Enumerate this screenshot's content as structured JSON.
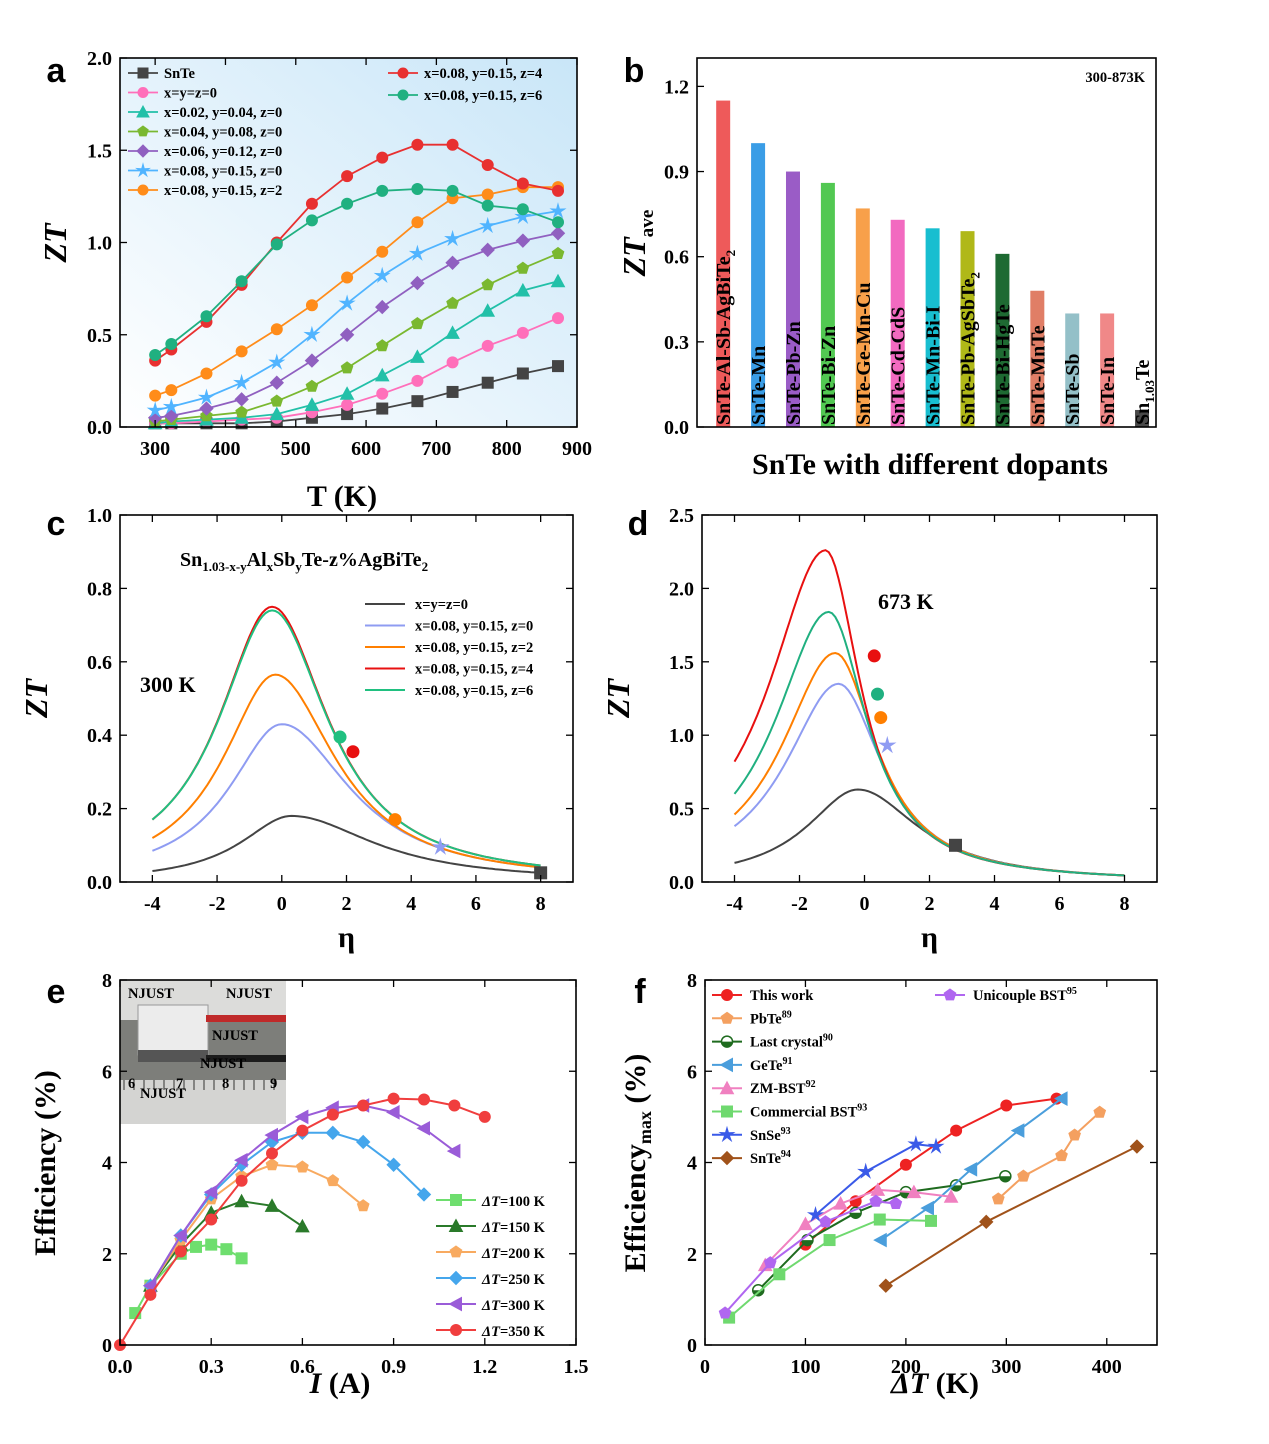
{
  "panel_labels": [
    "a",
    "b",
    "c",
    "d",
    "e",
    "f"
  ],
  "chart_data": [
    {
      "panel": "a",
      "type": "line",
      "xlabel": "T (K)",
      "ylabel": "ZT",
      "xlim": [
        250,
        900
      ],
      "ylim": [
        0,
        2.0
      ],
      "xticks": [
        "300",
        "400",
        "500",
        "600",
        "700",
        "800",
        "900"
      ],
      "yticks": [
        "0.0",
        "0.5",
        "1.0",
        "1.5",
        "2.0"
      ],
      "x": [
        300,
        323,
        373,
        423,
        473,
        523,
        573,
        623,
        673,
        723,
        773,
        823,
        873
      ],
      "legend_position": "top (two columns)",
      "series": [
        {
          "name": "SnTe",
          "color": "#444444",
          "marker": "square",
          "values": [
            0.02,
            0.02,
            0.02,
            0.02,
            0.03,
            0.05,
            0.07,
            0.1,
            0.14,
            0.19,
            0.24,
            0.29,
            0.33
          ]
        },
        {
          "name": "x=y=z=0",
          "color": "#ff6fba",
          "marker": "circle",
          "values": [
            0.02,
            0.02,
            0.03,
            0.04,
            0.05,
            0.08,
            0.12,
            0.18,
            0.25,
            0.35,
            0.44,
            0.51,
            0.59
          ]
        },
        {
          "name": "x=0.02, y=0.04, z=0",
          "color": "#22c0a8",
          "marker": "triangle",
          "values": [
            0.02,
            0.03,
            0.04,
            0.05,
            0.07,
            0.12,
            0.18,
            0.28,
            0.38,
            0.51,
            0.63,
            0.74,
            0.79
          ]
        },
        {
          "name": "x=0.04, y=0.08, z=0",
          "color": "#7ab830",
          "marker": "pentagon",
          "values": [
            0.03,
            0.04,
            0.06,
            0.08,
            0.14,
            0.22,
            0.32,
            0.44,
            0.56,
            0.67,
            0.77,
            0.86,
            0.94
          ]
        },
        {
          "name": "x=0.06, y=0.12, z=0",
          "color": "#9060c0",
          "marker": "diamond",
          "values": [
            0.05,
            0.06,
            0.1,
            0.15,
            0.24,
            0.36,
            0.5,
            0.65,
            0.78,
            0.89,
            0.96,
            1.01,
            1.05
          ]
        },
        {
          "name": "x=0.08, y=0.15, z=0",
          "color": "#50b4ff",
          "marker": "star",
          "values": [
            0.09,
            0.11,
            0.16,
            0.24,
            0.35,
            0.5,
            0.67,
            0.82,
            0.94,
            1.02,
            1.09,
            1.14,
            1.17
          ]
        },
        {
          "name": "x=0.08, y=0.15, z=2",
          "color": "#ff8c1a",
          "marker": "circle",
          "values": [
            0.17,
            0.2,
            0.29,
            0.41,
            0.53,
            0.66,
            0.81,
            0.95,
            1.11,
            1.24,
            1.26,
            1.3,
            1.3
          ]
        },
        {
          "name": "x=0.08, y=0.15, z=4",
          "color": "#e83030",
          "marker": "circle",
          "values": [
            0.36,
            0.42,
            0.57,
            0.77,
            1.0,
            1.21,
            1.36,
            1.46,
            1.53,
            1.53,
            1.42,
            1.32,
            1.28
          ]
        },
        {
          "name": "x=0.08, y=0.15, z=6",
          "color": "#20b080",
          "marker": "circle",
          "values": [
            0.39,
            0.45,
            0.6,
            0.79,
            0.99,
            1.12,
            1.21,
            1.28,
            1.29,
            1.28,
            1.2,
            1.18,
            1.11
          ]
        }
      ]
    },
    {
      "panel": "b",
      "type": "bar",
      "xlabel": "SnTe with different dopants",
      "ylabel": "ZTave",
      "annotation": "300-873K",
      "ylim": [
        0,
        1.3
      ],
      "yticks": [
        "0.0",
        "0.3",
        "0.6",
        "0.9",
        "1.2"
      ],
      "categories": [
        "SnTe-Al-Sb-AgBiTe2",
        "SnTe-Mn",
        "SnTe-Pb-Zn",
        "SnTe-Bi-Zn",
        "SnTe-Ge-Mn-Cu",
        "SnTe-Cd-CdS",
        "SnTe-Mn-Bi-I",
        "SnTe-Pb-AgSbTe2",
        "SnTe-Bi-HgTe",
        "SnTe-MnTe",
        "SnTe-Sb",
        "SnTe-In",
        "Sn1.03Te"
      ],
      "values": [
        1.15,
        1.0,
        0.9,
        0.86,
        0.77,
        0.73,
        0.7,
        0.69,
        0.61,
        0.48,
        0.4,
        0.4,
        0.06
      ],
      "colors": [
        "#ee5a5a",
        "#3a9de6",
        "#9a5cc6",
        "#52c852",
        "#f8a04a",
        "#f26ac0",
        "#18bed0",
        "#b0b818",
        "#1e6a32",
        "#e07e66",
        "#94c0c8",
        "#f08888",
        "#4a4a4a"
      ]
    },
    {
      "panel": "c",
      "type": "line",
      "xlabel": "η",
      "ylabel": "ZT",
      "annotation": "300 K",
      "formula": "Sn1.03-x-yAlxSbyTe-z%AgBiTe2",
      "xlim": [
        -5,
        9
      ],
      "ylim": [
        0,
        1.0
      ],
      "xticks": [
        "-4",
        "-2",
        "0",
        "2",
        "4",
        "6",
        "8"
      ],
      "yticks": [
        "0.0",
        "0.2",
        "0.4",
        "0.6",
        "0.8",
        "1.0"
      ],
      "legend_position": "right",
      "series": [
        {
          "name": "x=y=z=0",
          "color": "#444444",
          "peak_eta": 0.3,
          "peak_zt": 0.18,
          "start_zt": 0.03,
          "end_zt": 0.025,
          "marker": "square",
          "point": [
            8.0,
            0.025
          ]
        },
        {
          "name": "x=0.08, y=0.15, z=0",
          "color": "#8f9cf2",
          "peak_eta": 0.0,
          "peak_zt": 0.43,
          "start_zt": 0.085,
          "end_zt": 0.04,
          "marker": "star",
          "point": [
            4.9,
            0.095
          ]
        },
        {
          "name": "x=0.08, y=0.15, z=2",
          "color": "#ff7f00",
          "peak_eta": -0.2,
          "peak_zt": 0.565,
          "start_zt": 0.12,
          "end_zt": 0.04,
          "marker": "circle",
          "point": [
            3.5,
            0.17
          ]
        },
        {
          "name": "x=0.08, y=0.15, z=4",
          "color": "#e81010",
          "peak_eta": -0.3,
          "peak_zt": 0.75,
          "start_zt": 0.17,
          "end_zt": 0.045,
          "marker": "circle",
          "point": [
            2.2,
            0.355
          ]
        },
        {
          "name": "x=0.08, y=0.15, z=6",
          "color": "#20c080",
          "peak_eta": -0.3,
          "peak_zt": 0.74,
          "start_zt": 0.17,
          "end_zt": 0.045,
          "marker": "circle",
          "point": [
            1.8,
            0.395
          ]
        }
      ]
    },
    {
      "panel": "d",
      "type": "line",
      "xlabel": "η",
      "ylabel": "ZT",
      "annotation": "673 K",
      "xlim": [
        -5,
        9
      ],
      "ylim": [
        0,
        2.5
      ],
      "xticks": [
        "-4",
        "-2",
        "0",
        "2",
        "4",
        "6",
        "8"
      ],
      "yticks": [
        "0.0",
        "0.5",
        "1.0",
        "1.5",
        "2.0",
        "2.5"
      ],
      "series": [
        {
          "name": "x=y=z=0",
          "color": "#444444",
          "peak_eta": -0.2,
          "peak_zt": 0.63,
          "start_zt": 0.13,
          "end_zt": 0.045,
          "marker": "square",
          "point": [
            2.8,
            0.25
          ]
        },
        {
          "name": "x=0.08, y=0.15, z=0",
          "color": "#8f9cf2",
          "peak_eta": -0.8,
          "peak_zt": 1.35,
          "start_zt": 0.38,
          "end_zt": 0.045,
          "marker": "star",
          "point": [
            0.7,
            0.93
          ]
        },
        {
          "name": "x=0.08, y=0.15, z=2",
          "color": "#ff7f00",
          "peak_eta": -0.9,
          "peak_zt": 1.56,
          "start_zt": 0.46,
          "end_zt": 0.045,
          "marker": "circle",
          "point": [
            0.5,
            1.12
          ]
        },
        {
          "name": "x=0.08, y=0.15, z=4",
          "color": "#e81010",
          "peak_eta": -1.2,
          "peak_zt": 2.26,
          "start_zt": 0.82,
          "end_zt": 0.045,
          "marker": "circle",
          "point": [
            0.3,
            1.54
          ]
        },
        {
          "name": "x=0.08, y=0.15, z=6",
          "color": "#20b080",
          "peak_eta": -1.1,
          "peak_zt": 1.84,
          "start_zt": 0.6,
          "end_zt": 0.045,
          "marker": "circle",
          "point": [
            0.4,
            1.28
          ]
        }
      ]
    },
    {
      "panel": "e",
      "type": "line",
      "xlabel": "I (A)",
      "ylabel": "Efficiency (%)",
      "xlim": [
        0,
        1.5
      ],
      "ylim": [
        0,
        8
      ],
      "xticks": [
        "0.0",
        "0.3",
        "0.6",
        "0.9",
        "1.2",
        "1.5"
      ],
      "yticks": [
        "0",
        "2",
        "4",
        "6",
        "8"
      ],
      "legend_position": "bottom-right",
      "inset_text": [
        "NJUST",
        "NJUST",
        "NJUST",
        "NJUST",
        "NJUST",
        "6",
        "7",
        "8",
        "9"
      ],
      "series": [
        {
          "name": "ΔT=100 K",
          "color": "#6ede6e",
          "marker": "square",
          "x": [
            0.05,
            0.1,
            0.2,
            0.25,
            0.3,
            0.35,
            0.4
          ],
          "y": [
            0.7,
            1.3,
            2.0,
            2.15,
            2.2,
            2.1,
            1.9
          ]
        },
        {
          "name": "ΔT=150 K",
          "color": "#2a7a2a",
          "marker": "triangle",
          "x": [
            0.1,
            0.2,
            0.3,
            0.4,
            0.5,
            0.6
          ],
          "y": [
            1.3,
            2.2,
            2.9,
            3.15,
            3.05,
            2.6
          ]
        },
        {
          "name": "ΔT=200 K",
          "color": "#f8aa60",
          "marker": "pentagon",
          "x": [
            0.1,
            0.2,
            0.3,
            0.4,
            0.5,
            0.6,
            0.7,
            0.8
          ],
          "y": [
            1.3,
            2.3,
            3.2,
            3.7,
            3.95,
            3.9,
            3.6,
            3.05
          ]
        },
        {
          "name": "ΔT=250 K",
          "color": "#45a6ec",
          "marker": "diamond",
          "x": [
            0.1,
            0.2,
            0.3,
            0.4,
            0.5,
            0.6,
            0.7,
            0.8,
            0.9,
            1.0
          ],
          "y": [
            1.3,
            2.4,
            3.3,
            3.95,
            4.45,
            4.65,
            4.65,
            4.45,
            3.95,
            3.3
          ]
        },
        {
          "name": "ΔT=300 K",
          "color": "#9a5cd8",
          "marker": "tri-left",
          "x": [
            0.1,
            0.2,
            0.3,
            0.4,
            0.5,
            0.6,
            0.7,
            0.8,
            0.9,
            1.0,
            1.1
          ],
          "y": [
            1.3,
            2.4,
            3.35,
            4.05,
            4.6,
            5.0,
            5.2,
            5.25,
            5.1,
            4.75,
            4.25
          ]
        },
        {
          "name": "ΔT=350 K",
          "color": "#f03e3e",
          "marker": "circle",
          "x": [
            0.0,
            0.1,
            0.2,
            0.3,
            0.4,
            0.5,
            0.6,
            0.7,
            0.8,
            0.9,
            1.0,
            1.1,
            1.2
          ],
          "y": [
            0.0,
            1.1,
            2.05,
            2.75,
            3.6,
            4.2,
            4.7,
            5.05,
            5.25,
            5.4,
            5.38,
            5.25,
            5.0
          ]
        }
      ]
    },
    {
      "panel": "f",
      "type": "line",
      "xlabel": "ΔT (K)",
      "ylabel": "Efficiencymax (%)",
      "xlim": [
        0,
        450
      ],
      "ylim": [
        0,
        8
      ],
      "xticks": [
        "0",
        "100",
        "200",
        "300",
        "400"
      ],
      "yticks": [
        "0",
        "2",
        "4",
        "6",
        "8"
      ],
      "legend_position": "top (two columns)",
      "series": [
        {
          "name": "This work",
          "sup": "",
          "color": "#ee2222",
          "marker": "circle",
          "x": [
            100,
            150,
            200,
            250,
            300,
            350
          ],
          "y": [
            2.2,
            3.15,
            3.95,
            4.7,
            5.25,
            5.4
          ]
        },
        {
          "name": "PbTe",
          "sup": "89",
          "color": "#f4a060",
          "marker": "pentagon",
          "x": [
            292,
            317,
            355,
            368,
            393
          ],
          "y": [
            3.2,
            3.7,
            4.15,
            4.6,
            5.1
          ]
        },
        {
          "name": "Last crystal",
          "sup": "90",
          "color": "#1f6b1f",
          "marker": "half-circle",
          "x": [
            53,
            102,
            150,
            200,
            250,
            299
          ],
          "y": [
            1.2,
            2.3,
            2.9,
            3.35,
            3.5,
            3.7
          ]
        },
        {
          "name": "GeTe",
          "sup": "91",
          "color": "#4a9edc",
          "marker": "tri-left",
          "x": [
            175,
            222,
            265,
            312,
            355
          ],
          "y": [
            2.3,
            3.0,
            3.85,
            4.7,
            5.4
          ]
        },
        {
          "name": "ZM-BST",
          "sup": "92",
          "color": "#f080c0",
          "marker": "triangle",
          "x": [
            60,
            100,
            135,
            172,
            208,
            245
          ],
          "y": [
            1.75,
            2.65,
            3.1,
            3.4,
            3.35,
            3.25
          ]
        },
        {
          "name": "Commercial BST",
          "sup": "93",
          "color": "#6fd96f",
          "marker": "square",
          "x": [
            24,
            74,
            124,
            174,
            225
          ],
          "y": [
            0.6,
            1.55,
            2.3,
            2.75,
            2.72
          ]
        },
        {
          "name": "SnSe",
          "sup": "93",
          "color": "#3a5ae8",
          "marker": "star",
          "x": [
            110,
            160,
            210,
            230
          ],
          "y": [
            2.85,
            3.8,
            4.4,
            4.35
          ]
        },
        {
          "name": "SnTe",
          "sup": "94",
          "color": "#a0521a",
          "marker": "diamond",
          "x": [
            180,
            280,
            430
          ],
          "y": [
            1.3,
            2.7,
            4.35
          ]
        },
        {
          "name": "Unicouple BST",
          "sup": "95",
          "color": "#b066f0",
          "marker": "pentagon",
          "x": [
            20,
            65,
            120,
            170,
            190
          ],
          "y": [
            0.7,
            1.8,
            2.7,
            3.15,
            3.1
          ]
        }
      ]
    }
  ]
}
